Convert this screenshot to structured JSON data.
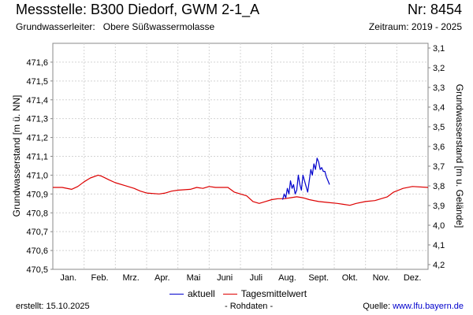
{
  "header": {
    "title": "Messstelle: B300 Diedorf, GWM 2-1_A",
    "number": "Nr: 8454",
    "aquifer_label": "Grundwasserleiter:",
    "aquifer_value": "Obere Süßwassermolasse",
    "period": "Zeitraum: 2019 - 2025"
  },
  "footer": {
    "created": "erstellt:  15.10.2025",
    "raw_note": "- Rohdaten -",
    "source_label": "Quelle:",
    "source_url": "www.lfu.bayern.de"
  },
  "chart_data": {
    "type": "line",
    "ylabel_left": "Grundwasserstand [m ü. NN]",
    "ylabel_right": "Grundwasserstand [m u. Gelände]",
    "ylim_left": [
      470.5,
      471.7
    ],
    "ylim_right": [
      3.1,
      4.2
    ],
    "yticks_left": [
      "470,5",
      "470,6",
      "470,7",
      "470,8",
      "470,9",
      "471,0",
      "471,1",
      "471,2",
      "471,3",
      "471,4",
      "471,5",
      "471,6"
    ],
    "yticks_right": [
      "3,1",
      "3,2",
      "3,3",
      "3,4",
      "3,5",
      "3,6",
      "3,7",
      "3,8",
      "3,9",
      "4,0",
      "4,1",
      "4,2"
    ],
    "months": [
      "Jan.",
      "Feb.",
      "Mrz.",
      "Apr.",
      "Mai",
      "Juni",
      "Juli",
      "Aug.",
      "Sept.",
      "Okt.",
      "Nov.",
      "Dez."
    ],
    "grid": true,
    "legend_position": "bottom",
    "series": [
      {
        "name": "aktuell",
        "color": "#0000cc",
        "points": [
          [
            7.35,
            470.87
          ],
          [
            7.4,
            470.9
          ],
          [
            7.45,
            470.88
          ],
          [
            7.5,
            470.93
          ],
          [
            7.55,
            470.9
          ],
          [
            7.6,
            470.97
          ],
          [
            7.65,
            470.93
          ],
          [
            7.7,
            470.95
          ],
          [
            7.75,
            470.9
          ],
          [
            7.8,
            470.92
          ],
          [
            7.85,
            471.0
          ],
          [
            7.9,
            470.95
          ],
          [
            7.95,
            470.92
          ],
          [
            8.0,
            471.0
          ],
          [
            8.05,
            470.97
          ],
          [
            8.1,
            470.94
          ],
          [
            8.15,
            470.91
          ],
          [
            8.2,
            470.97
          ],
          [
            8.25,
            471.03
          ],
          [
            8.3,
            471.0
          ],
          [
            8.35,
            471.06
          ],
          [
            8.4,
            471.03
          ],
          [
            8.45,
            471.09
          ],
          [
            8.5,
            471.07
          ],
          [
            8.55,
            471.03
          ],
          [
            8.6,
            471.04
          ],
          [
            8.65,
            471.02
          ],
          [
            8.7,
            471.02
          ],
          [
            8.75,
            470.99
          ],
          [
            8.8,
            470.97
          ],
          [
            8.85,
            470.95
          ]
        ]
      },
      {
        "name": "Tagesmittelwert",
        "color": "#dd0000",
        "points": [
          [
            0.0,
            470.935
          ],
          [
            0.3,
            470.935
          ],
          [
            0.6,
            470.925
          ],
          [
            0.8,
            470.94
          ],
          [
            1.0,
            470.965
          ],
          [
            1.2,
            470.985
          ],
          [
            1.45,
            471.0
          ],
          [
            1.55,
            470.995
          ],
          [
            1.8,
            470.975
          ],
          [
            2.0,
            470.96
          ],
          [
            2.3,
            470.945
          ],
          [
            2.6,
            470.93
          ],
          [
            2.8,
            470.915
          ],
          [
            3.0,
            470.905
          ],
          [
            3.4,
            470.9
          ],
          [
            3.6,
            470.905
          ],
          [
            3.8,
            470.915
          ],
          [
            4.0,
            470.92
          ],
          [
            4.4,
            470.925
          ],
          [
            4.6,
            470.935
          ],
          [
            4.8,
            470.93
          ],
          [
            5.0,
            470.94
          ],
          [
            5.2,
            470.935
          ],
          [
            5.4,
            470.935
          ],
          [
            5.6,
            470.935
          ],
          [
            5.8,
            470.91
          ],
          [
            6.0,
            470.9
          ],
          [
            6.2,
            470.89
          ],
          [
            6.4,
            470.86
          ],
          [
            6.6,
            470.85
          ],
          [
            6.8,
            470.86
          ],
          [
            7.0,
            470.87
          ],
          [
            7.2,
            470.875
          ],
          [
            7.4,
            470.875
          ],
          [
            7.6,
            470.88
          ],
          [
            7.8,
            470.885
          ],
          [
            8.0,
            470.88
          ],
          [
            8.2,
            470.87
          ],
          [
            8.5,
            470.86
          ],
          [
            8.8,
            470.855
          ],
          [
            9.1,
            470.85
          ],
          [
            9.3,
            470.845
          ],
          [
            9.5,
            470.84
          ],
          [
            9.7,
            470.85
          ],
          [
            10.0,
            470.86
          ],
          [
            10.3,
            470.865
          ],
          [
            10.5,
            470.875
          ],
          [
            10.7,
            470.885
          ],
          [
            10.9,
            470.91
          ],
          [
            11.2,
            470.93
          ],
          [
            11.5,
            470.94
          ],
          [
            12.0,
            470.935
          ]
        ]
      }
    ]
  }
}
